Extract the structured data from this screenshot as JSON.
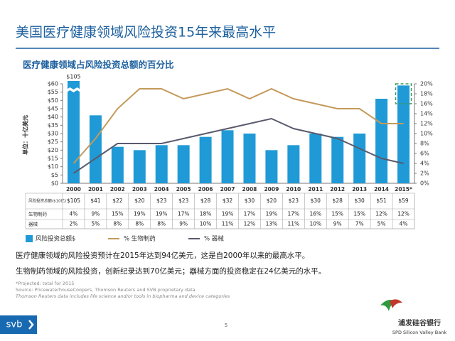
{
  "chart_data": {
    "type": "bar_line",
    "title": "美国医疗健康领域风险投资15年来最高水平",
    "subtitle": "医疗健康领域占风险投资总额的百分比",
    "y_label": "单位：十亿美元",
    "categories": [
      "2000",
      "2001",
      "2002",
      "2003",
      "2004",
      "2005",
      "2006",
      "2007",
      "2008",
      "2009",
      "2010",
      "2011",
      "2012",
      "2013",
      "2014",
      "2015*"
    ],
    "series": [
      {
        "name": "风险投资总额$",
        "table_label": "风险投资总额($10亿)",
        "color": "#1f9ad6",
        "values": [
          105,
          41,
          22,
          20,
          23,
          23,
          28,
          32,
          30,
          20,
          23,
          30,
          28,
          30,
          51,
          59
        ],
        "value_labels": [
          "$105",
          "$41",
          "$22",
          "$20",
          "$23",
          "$23",
          "$28",
          "$32",
          "$30",
          "$20",
          "$23",
          "$30",
          "$28",
          "$30",
          "$51",
          "$59"
        ]
      },
      {
        "name": "% 生物制药",
        "table_label": "生物制药",
        "color": "#c49a5a",
        "axis": "y2",
        "values": [
          4,
          9,
          15,
          19,
          19,
          17,
          18,
          19,
          17,
          19,
          17,
          16,
          15,
          15,
          12,
          12
        ],
        "value_labels": [
          "4%",
          "9%",
          "15%",
          "19%",
          "19%",
          "17%",
          "18%",
          "19%",
          "17%",
          "19%",
          "17%",
          "16%",
          "15%",
          "15%",
          "12%",
          "12%"
        ]
      },
      {
        "name": "% 器械",
        "table_label": "器械",
        "color": "#595a6e",
        "axis": "y2",
        "values": [
          2,
          5,
          8,
          8,
          8,
          9,
          10,
          11,
          12,
          13,
          11,
          10,
          9,
          7,
          5,
          4
        ],
        "value_labels": [
          "2%",
          "5%",
          "8%",
          "8%",
          "8%",
          "9%",
          "10%",
          "11%",
          "12%",
          "13%",
          "11%",
          "10%",
          "9%",
          "7%",
          "5%",
          "4%"
        ]
      }
    ],
    "top_label": "$105",
    "ylim": [
      0,
      60
    ],
    "yticks": [
      {
        "value": 0,
        "label": "$0"
      },
      {
        "value": 5,
        "label": "$5"
      },
      {
        "value": 10,
        "label": "$10"
      },
      {
        "value": 15,
        "label": "$15"
      },
      {
        "value": 20,
        "label": "$20"
      },
      {
        "value": 25,
        "label": "$25"
      },
      {
        "value": 30,
        "label": "$30"
      },
      {
        "value": 35,
        "label": "$35"
      },
      {
        "value": 40,
        "label": "$40"
      },
      {
        "value": 45,
        "label": "$45"
      },
      {
        "value": 50,
        "label": "$50"
      },
      {
        "value": 55,
        "label": "$55"
      },
      {
        "value": 60,
        "label": "$60"
      }
    ],
    "y2lim": [
      0,
      20
    ],
    "y2ticks": [
      {
        "value": 0,
        "label": "0%"
      },
      {
        "value": 2,
        "label": "2%"
      },
      {
        "value": 4,
        "label": "4%"
      },
      {
        "value": 6,
        "label": "6%"
      },
      {
        "value": 8,
        "label": "8%"
      },
      {
        "value": 10,
        "label": "10%"
      },
      {
        "value": 12,
        "label": "12%"
      },
      {
        "value": 14,
        "label": "14%"
      },
      {
        "value": 16,
        "label": "16%"
      },
      {
        "value": 18,
        "label": "18%"
      },
      {
        "value": 20,
        "label": "20%"
      }
    ],
    "notes": [
      "医疗健康领域的风险投资预计在2015年达到94亿美元，这是自2000年以来的最高水平。",
      "生物制药领域的风险投资，创新纪录达到70亿美元；器械方面的投资稳定在24亿美元的水平。"
    ],
    "footnotes": [
      "*Projected: total for 2015",
      "Source: PricewaterhouseCoopers, Thomson Reuters and SVB proprietary data",
      "Thomson Reuters data includes life science and/or tools in biopharma and device categories"
    ],
    "page_number": "5",
    "logo": "svb",
    "bank_name": "浦发硅谷银行",
    "bank_name_en": "SPD Silicon Valley Bank"
  }
}
